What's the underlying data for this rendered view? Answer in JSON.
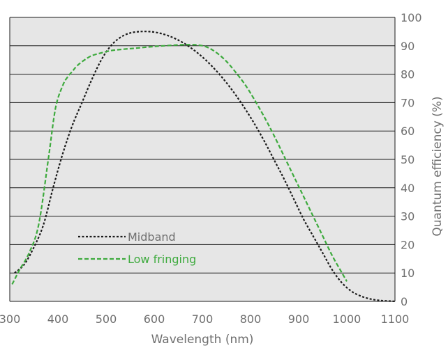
{
  "chart_data": {
    "type": "line",
    "title": "",
    "xlabel": "Wavelength (nm)",
    "ylabel": "Quantum efficiency (%)",
    "xlim": [
      300,
      1100
    ],
    "ylim": [
      0,
      100
    ],
    "x_ticks": [
      "300",
      "400",
      "500",
      "600",
      "700",
      "800",
      "900",
      "1000",
      "1100"
    ],
    "y_ticks": [
      "0",
      "10",
      "20",
      "30",
      "40",
      "50",
      "60",
      "70",
      "80",
      "90",
      "100"
    ],
    "y_axis_side": "right",
    "grid": "horizontal",
    "legend_position": "bottom-left",
    "series": [
      {
        "name": "Midband",
        "color": "#1a1a1a",
        "style": "dotted",
        "x": [
          310,
          330,
          350,
          370,
          390,
          410,
          430,
          450,
          470,
          490,
          510,
          530,
          550,
          570,
          590,
          610,
          630,
          650,
          670,
          690,
          710,
          730,
          750,
          770,
          790,
          810,
          830,
          850,
          870,
          890,
          910,
          930,
          950,
          970,
          990,
          1010,
          1030,
          1050,
          1070,
          1090,
          1100
        ],
        "values": [
          10,
          13,
          19,
          27,
          40,
          52,
          62,
          70,
          78,
          85,
          90,
          93,
          94.5,
          95,
          95,
          94.5,
          93.5,
          92,
          90,
          87.5,
          84.5,
          81,
          77,
          72.5,
          67.5,
          62,
          56,
          49.5,
          43,
          36,
          29,
          23,
          17,
          11,
          6.5,
          3.5,
          1.8,
          0.8,
          0.3,
          0.1,
          0
        ]
      },
      {
        "name": "Low fringing",
        "color": "#3daa3d",
        "style": "dashed",
        "x": [
          305,
          320,
          340,
          360,
          380,
          395,
          410,
          420,
          430,
          440,
          455,
          470,
          490,
          510,
          530,
          550,
          570,
          590,
          610,
          630,
          650,
          670,
          690,
          710,
          730,
          750,
          770,
          790,
          810,
          830,
          850,
          870,
          890,
          910,
          930,
          950,
          970,
          990,
          1000
        ],
        "values": [
          6,
          11,
          17,
          27,
          50,
          68,
          76,
          79,
          81,
          83,
          85,
          86.5,
          87.5,
          88.3,
          88.7,
          89,
          89.3,
          89.6,
          89.9,
          90.1,
          90.3,
          90.4,
          90.3,
          89.5,
          87.5,
          84.5,
          80.5,
          76,
          70.5,
          64.5,
          58,
          51,
          44,
          37,
          30,
          23,
          16,
          10,
          7
        ]
      }
    ]
  }
}
